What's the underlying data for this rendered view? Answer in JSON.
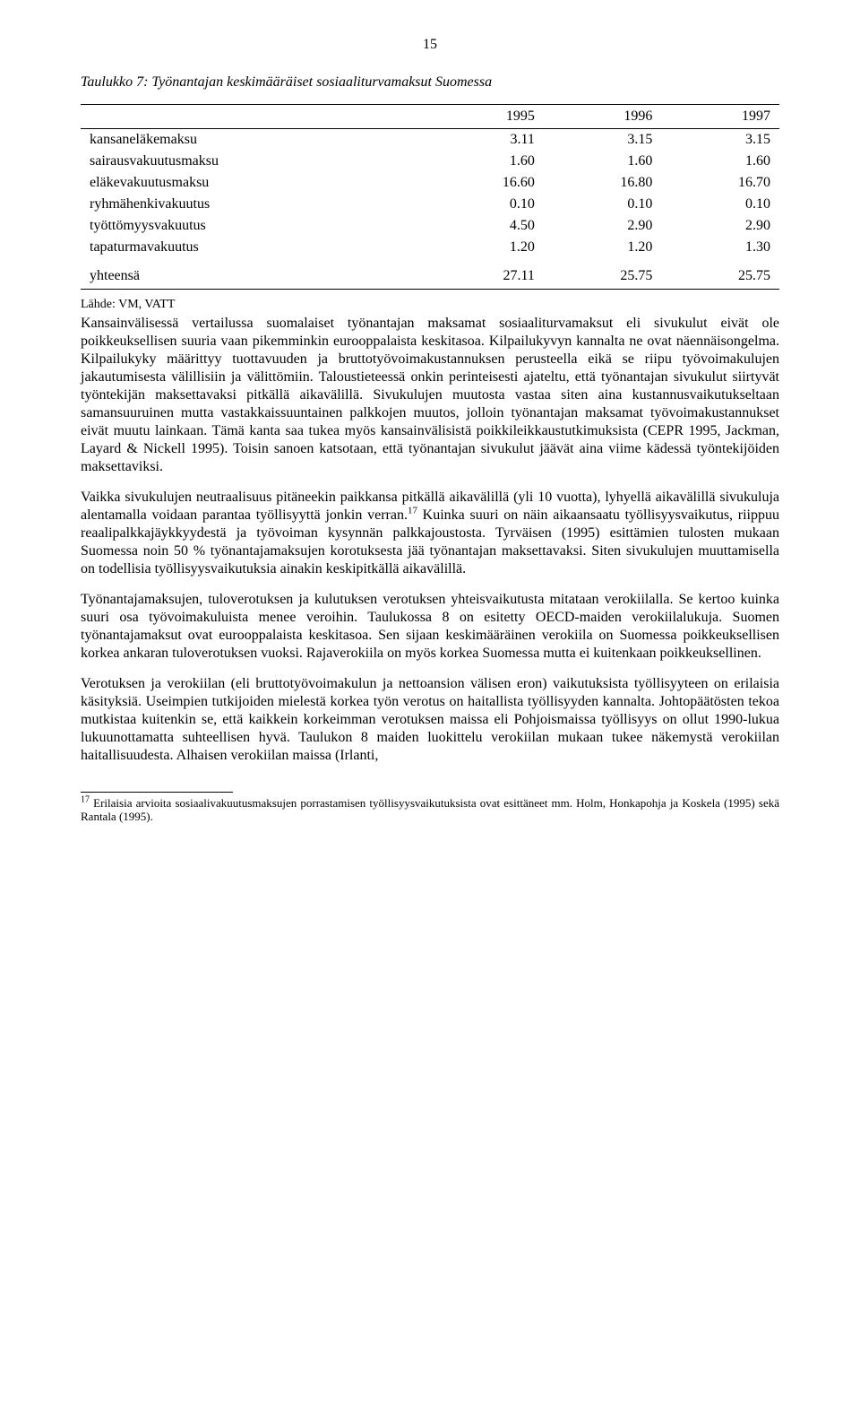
{
  "page_number": "15",
  "table": {
    "caption_prefix": "Taulukko 7:",
    "caption_title": "Työnantajan keskimääräiset sosiaaliturvamaksut Suomessa",
    "headers": [
      "",
      "1995",
      "1996",
      "1997"
    ],
    "rows": [
      {
        "label": "kansaneläkemaksu",
        "c1": "3.11",
        "c2": "3.15",
        "c3": "3.15"
      },
      {
        "label": "sairausvakuutusmaksu",
        "c1": "1.60",
        "c2": "1.60",
        "c3": "1.60"
      },
      {
        "label": "eläkevakuutusmaksu",
        "c1": "16.60",
        "c2": "16.80",
        "c3": "16.70"
      },
      {
        "label": "ryhmähenkivakuutus",
        "c1": "0.10",
        "c2": "0.10",
        "c3": "0.10"
      },
      {
        "label": "työttömyysvakuutus",
        "c1": "4.50",
        "c2": "2.90",
        "c3": "2.90"
      },
      {
        "label": "tapaturmavakuutus",
        "c1": "1.20",
        "c2": "1.20",
        "c3": "1.30"
      }
    ],
    "total": {
      "label": "yhteensä",
      "c1": "27.11",
      "c2": "25.75",
      "c3": "25.75"
    },
    "source": "Lähde: VM, VATT"
  },
  "paragraphs": {
    "p1": "Kansainvälisessä vertailussa suomalaiset työnantajan maksamat sosiaaliturvamaksut eli sivukulut eivät ole poikkeuksellisen suuria vaan pikemminkin eurooppalaista keskitasoa. Kilpailukyvyn kannalta ne ovat näennäisongelma. Kilpailukyky määrittyy tuottavuuden ja bruttotyövoimakustannuksen perusteella eikä se riipu työvoimakulujen jakautumisesta välillisiin ja välittömiin. Taloustieteessä onkin perinteisesti ajateltu, että työnantajan sivukulut siirtyvät työntekijän maksettavaksi pitkällä aikavälillä. Sivukulujen muutosta vastaa siten aina kustannusvaikutukseltaan samansuuruinen mutta vastakkaissuuntainen palkkojen muutos, jolloin työnantajan maksamat työvoimakustannukset eivät muutu lainkaan. Tämä kanta saa tukea myös kansainvälisistä poikkileikkaustutkimuksista (CEPR 1995, Jackman, Layard & Nickell 1995). Toisin sanoen katsotaan, että työnantajan sivukulut jäävät aina viime kädessä työntekijöiden maksettaviksi.",
    "p2a": "Vaikka sivukulujen neutraalisuus pitäneekin paikkansa pitkällä aikavälillä (yli 10 vuotta), lyhyellä aikavälillä sivukuluja alentamalla voidaan parantaa työllisyyttä jonkin verran.",
    "p2b": " Kuinka suuri on näin aikaansaatu työllisyysvaikutus, riippuu reaalipalkkajäykkyydestä ja työvoiman kysynnän palkkajoustosta. Tyrväisen (1995) esittämien tulosten mukaan Suomessa noin 50 % työnantajamaksujen korotuksesta jää työnantajan maksettavaksi. Siten sivukulujen muuttamisella on todellisia työllisyysvaikutuksia ainakin keskipitkällä aikavälillä.",
    "p3": "Työnantajamaksujen, tuloverotuksen ja kulutuksen verotuksen yhteisvaikutusta mitataan verokiilalla. Se kertoo kuinka suuri osa työvoimakuluista menee veroihin. Taulukossa 8 on esitetty OECD-maiden verokiilalukuja. Suomen työnantajamaksut ovat eurooppalaista keskitasoa. Sen sijaan keskimääräinen verokiila on Suomessa poikkeuksellisen korkea ankaran tuloverotuksen vuoksi. Rajaverokiila on myös korkea Suomessa mutta ei kuitenkaan poikkeuksellinen.",
    "p4": "Verotuksen ja verokiilan (eli bruttotyövoimakulun ja nettoansion välisen eron) vaikutuksista työllisyyteen on erilaisia käsityksiä. Useimpien tutkijoiden mielestä korkea työn verotus on haitallista työllisyyden kannalta. Johtopäätösten tekoa mutkistaa kuitenkin se, että kaikkein korkeimman verotuksen maissa eli Pohjoismaissa työllisyys on ollut 1990-lukua lukuunottamatta suhteellisen hyvä. Taulukon 8 maiden luokittelu verokiilan mukaan tukee näkemystä verokiilan haitallisuudesta. Alhaisen verokiilan maissa (Irlanti,"
  },
  "footnote": {
    "marker": "17",
    "text": " Erilaisia arvioita sosiaalivakuutusmaksujen porrastamisen työllisyysvaikutuksista ovat esittäneet mm. Holm, Honkapohja ja Koskela (1995) sekä Rantala (1995)."
  }
}
